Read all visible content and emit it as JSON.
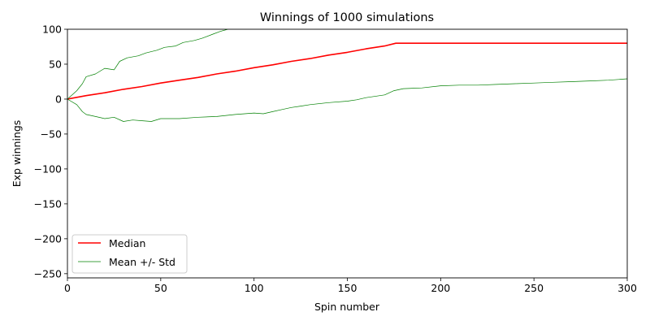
{
  "chart_data": {
    "type": "line",
    "title": "Winnings of 1000 simulations",
    "xlabel": "Spin number",
    "ylabel": "Exp winnings",
    "xlim": [
      0,
      300
    ],
    "ylim": [
      -256,
      100
    ],
    "xticks": [
      0,
      50,
      100,
      150,
      200,
      250,
      300
    ],
    "yticks": [
      100,
      50,
      0,
      -50,
      -100,
      -150,
      -200,
      -250
    ],
    "legend_position": "lower-left",
    "grid": false,
    "series": [
      {
        "name": "Median",
        "color": "#ff0000",
        "x": [
          0,
          10,
          20,
          30,
          40,
          50,
          60,
          70,
          80,
          90,
          100,
          110,
          120,
          130,
          140,
          150,
          160,
          170,
          176,
          180,
          200,
          250,
          300
        ],
        "y": [
          0,
          5,
          9,
          14,
          18,
          23,
          27,
          31,
          36,
          40,
          45,
          49,
          54,
          58,
          63,
          67,
          72,
          76,
          80,
          80,
          80,
          80,
          80
        ]
      },
      {
        "name": "Mean +/- Std",
        "color": "#008000",
        "x": [
          0,
          5,
          8,
          10,
          15,
          20,
          25,
          28,
          32,
          38,
          42,
          48,
          52,
          58,
          62,
          68,
          72,
          78,
          82,
          86
        ],
        "y": [
          0,
          12,
          22,
          32,
          36,
          44,
          42,
          54,
          59,
          62,
          66,
          70,
          74,
          76,
          81,
          84,
          87,
          93,
          97,
          100
        ]
      },
      {
        "name": "",
        "color": "#008000",
        "x": [
          0,
          5,
          8,
          10,
          15,
          20,
          25,
          30,
          35,
          40,
          45,
          50,
          55,
          60,
          70,
          80,
          90,
          100,
          105,
          110,
          115,
          120,
          125,
          130,
          140,
          150,
          155,
          160,
          170,
          175,
          180,
          190,
          200,
          210,
          220,
          230,
          240,
          250,
          260,
          270,
          280,
          290,
          300
        ],
        "y": [
          0,
          -8,
          -18,
          -22,
          -25,
          -28,
          -26,
          -32,
          -30,
          -31,
          -32,
          -28,
          -28,
          -28,
          -26,
          -25,
          -22,
          -20,
          -21,
          -18,
          -15,
          -12,
          -10,
          -8,
          -5,
          -3,
          -1,
          2,
          6,
          12,
          15,
          16,
          19,
          20,
          20,
          21,
          22,
          23,
          24,
          25,
          26,
          27,
          29
        ]
      }
    ],
    "legend": [
      {
        "label": "Median",
        "color": "#ff0000"
      },
      {
        "label": "Mean +/- Std",
        "color": "#008000"
      }
    ]
  }
}
